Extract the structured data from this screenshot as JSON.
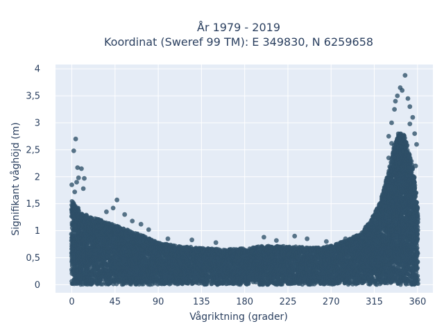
{
  "chart_data": {
    "type": "scatter",
    "title_line1": "År 1979 - 2019",
    "title_line2": "Koordinat (Sweref 99 TM): E 349830, N 6259658",
    "xlabel": "Vågriktning (grader)",
    "ylabel": "Signifikant våghöjd (m)",
    "xlim": [
      -17,
      376
    ],
    "ylim": [
      -0.15,
      4.08
    ],
    "x_ticks": [
      0,
      45,
      90,
      135,
      180,
      225,
      270,
      315,
      360
    ],
    "x_tick_labels": [
      "0",
      "45",
      "90",
      "135",
      "180",
      "225",
      "270",
      "315",
      "360"
    ],
    "y_ticks": [
      0,
      0.5,
      1,
      1.5,
      2,
      2.5,
      3,
      3.5,
      4
    ],
    "y_tick_labels": [
      "0",
      "0,5",
      "1",
      "1,5",
      "2",
      "2,5",
      "3",
      "3,5",
      "4"
    ],
    "grid": true,
    "colors": {
      "background": "#e5ecf6",
      "grid": "#ffffff",
      "marker": "#2e5068"
    },
    "upper_envelope": [
      [
        0,
        1.55
      ],
      [
        10,
        1.35
      ],
      [
        20,
        1.25
      ],
      [
        30,
        1.2
      ],
      [
        45,
        1.1
      ],
      [
        60,
        1.0
      ],
      [
        75,
        0.9
      ],
      [
        90,
        0.78
      ],
      [
        110,
        0.72
      ],
      [
        135,
        0.68
      ],
      [
        160,
        0.65
      ],
      [
        180,
        0.68
      ],
      [
        200,
        0.72
      ],
      [
        225,
        0.72
      ],
      [
        250,
        0.68
      ],
      [
        270,
        0.72
      ],
      [
        290,
        0.85
      ],
      [
        300,
        0.95
      ],
      [
        310,
        1.15
      ],
      [
        320,
        1.5
      ],
      [
        330,
        2.1
      ],
      [
        335,
        2.55
      ],
      [
        340,
        2.8
      ],
      [
        345,
        2.8
      ],
      [
        350,
        2.6
      ],
      [
        355,
        2.2
      ],
      [
        360,
        1.5
      ]
    ],
    "outliers": [
      {
        "x": 4,
        "y": 2.7
      },
      {
        "x": 2,
        "y": 2.48
      },
      {
        "x": 6,
        "y": 2.17
      },
      {
        "x": 10,
        "y": 2.15
      },
      {
        "x": 7,
        "y": 1.98
      },
      {
        "x": 13,
        "y": 1.97
      },
      {
        "x": 0,
        "y": 1.85
      },
      {
        "x": 5,
        "y": 1.9
      },
      {
        "x": 12,
        "y": 1.78
      },
      {
        "x": 3,
        "y": 1.72
      },
      {
        "x": 47,
        "y": 1.57
      },
      {
        "x": 43,
        "y": 1.42
      },
      {
        "x": 36,
        "y": 1.35
      },
      {
        "x": 55,
        "y": 1.3
      },
      {
        "x": 63,
        "y": 1.18
      },
      {
        "x": 72,
        "y": 1.12
      },
      {
        "x": 80,
        "y": 1.02
      },
      {
        "x": 100,
        "y": 0.85
      },
      {
        "x": 125,
        "y": 0.83
      },
      {
        "x": 150,
        "y": 0.78
      },
      {
        "x": 200,
        "y": 0.88
      },
      {
        "x": 213,
        "y": 0.82
      },
      {
        "x": 232,
        "y": 0.9
      },
      {
        "x": 245,
        "y": 0.85
      },
      {
        "x": 265,
        "y": 0.8
      },
      {
        "x": 285,
        "y": 0.85
      },
      {
        "x": 296,
        "y": 0.9
      },
      {
        "x": 305,
        "y": 1.0
      },
      {
        "x": 318,
        "y": 1.28
      },
      {
        "x": 325,
        "y": 1.75
      },
      {
        "x": 330,
        "y": 2.35
      },
      {
        "x": 333,
        "y": 2.62
      },
      {
        "x": 347,
        "y": 3.88
      },
      {
        "x": 342,
        "y": 3.65
      },
      {
        "x": 344,
        "y": 3.6
      },
      {
        "x": 339,
        "y": 3.5
      },
      {
        "x": 350,
        "y": 3.45
      },
      {
        "x": 337,
        "y": 3.4
      },
      {
        "x": 352,
        "y": 3.3
      },
      {
        "x": 336,
        "y": 3.25
      },
      {
        "x": 355,
        "y": 3.1
      },
      {
        "x": 333,
        "y": 3.0
      },
      {
        "x": 357,
        "y": 2.8
      },
      {
        "x": 359,
        "y": 2.6
      },
      {
        "x": 330,
        "y": 2.75
      },
      {
        "x": 358,
        "y": 2.2
      },
      {
        "x": 352,
        "y": 2.98
      }
    ]
  }
}
